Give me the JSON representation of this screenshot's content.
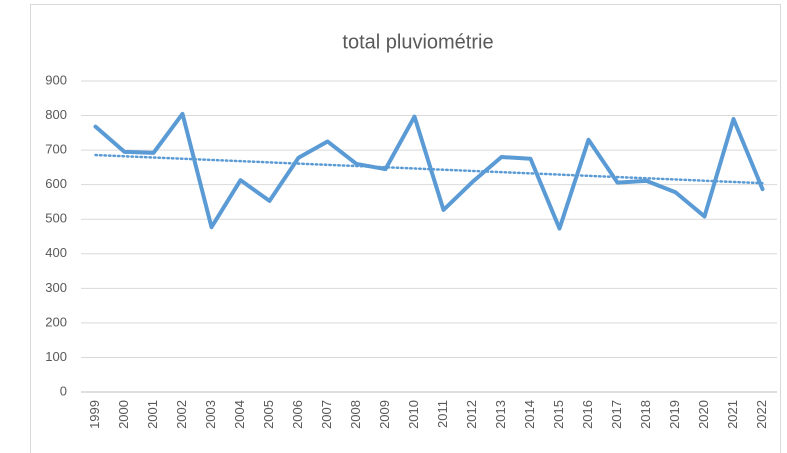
{
  "chart_data": {
    "type": "line",
    "title": "total pluviométrie",
    "categories": [
      "1999",
      "2000",
      "2001",
      "2002",
      "2003",
      "2004",
      "2005",
      "2006",
      "2007",
      "2008",
      "2009",
      "2010",
      "2011",
      "2012",
      "2013",
      "2014",
      "2015",
      "2016",
      "2017",
      "2018",
      "2019",
      "2020",
      "2021",
      "2022"
    ],
    "values": [
      768,
      695,
      692,
      805,
      477,
      613,
      553,
      678,
      725,
      660,
      645,
      797,
      527,
      608,
      680,
      675,
      473,
      730,
      606,
      611,
      578,
      508,
      790,
      587
    ],
    "color": "#5b9bd5",
    "trendline": "linear",
    "ylim": [
      0,
      900
    ],
    "yticks": [
      0,
      100,
      200,
      300,
      400,
      500,
      600,
      700,
      800,
      900
    ],
    "grid": true
  }
}
